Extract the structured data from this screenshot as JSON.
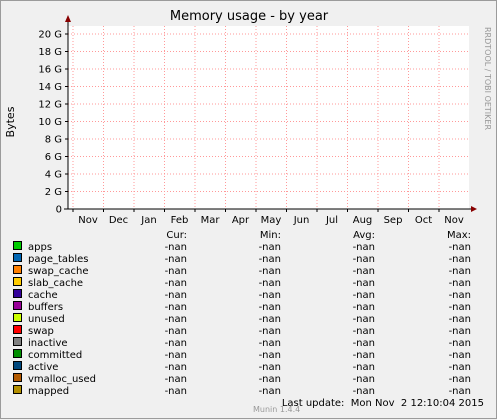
{
  "chart_data": {
    "type": "line",
    "title": "Memory usage - by year",
    "ylabel": "Bytes",
    "xlabel": "",
    "y_ticks": [
      "0",
      "2 G",
      "4 G",
      "6 G",
      "8 G",
      "10 G",
      "12 G",
      "14 G",
      "16 G",
      "18 G",
      "20 G"
    ],
    "ylim": [
      0,
      20
    ],
    "y_unit": "G",
    "x_ticks": [
      "Nov",
      "Dec",
      "Jan",
      "Feb",
      "Mar",
      "Apr",
      "May",
      "Jun",
      "Jul",
      "Aug",
      "Sep",
      "Oct",
      "Nov"
    ],
    "grid": true,
    "side_label": "RRDTOOL / TOBI OETIKER",
    "legend_headers": [
      "Cur:",
      "Min:",
      "Avg:",
      "Max:"
    ],
    "series": [
      {
        "name": "apps",
        "color": "#00cc00",
        "cur": "-nan",
        "min": "-nan",
        "avg": "-nan",
        "max": "-nan"
      },
      {
        "name": "page_tables",
        "color": "#0066b3",
        "cur": "-nan",
        "min": "-nan",
        "avg": "-nan",
        "max": "-nan"
      },
      {
        "name": "swap_cache",
        "color": "#ff8000",
        "cur": "-nan",
        "min": "-nan",
        "avg": "-nan",
        "max": "-nan"
      },
      {
        "name": "slab_cache",
        "color": "#ffcc00",
        "cur": "-nan",
        "min": "-nan",
        "avg": "-nan",
        "max": "-nan"
      },
      {
        "name": "cache",
        "color": "#330099",
        "cur": "-nan",
        "min": "-nan",
        "avg": "-nan",
        "max": "-nan"
      },
      {
        "name": "buffers",
        "color": "#990099",
        "cur": "-nan",
        "min": "-nan",
        "avg": "-nan",
        "max": "-nan"
      },
      {
        "name": "unused",
        "color": "#ccff00",
        "cur": "-nan",
        "min": "-nan",
        "avg": "-nan",
        "max": "-nan"
      },
      {
        "name": "swap",
        "color": "#ff0000",
        "cur": "-nan",
        "min": "-nan",
        "avg": "-nan",
        "max": "-nan"
      },
      {
        "name": "inactive",
        "color": "#808080",
        "cur": "-nan",
        "min": "-nan",
        "avg": "-nan",
        "max": "-nan"
      },
      {
        "name": "committed",
        "color": "#008f00",
        "cur": "-nan",
        "min": "-nan",
        "avg": "-nan",
        "max": "-nan"
      },
      {
        "name": "active",
        "color": "#00487d",
        "cur": "-nan",
        "min": "-nan",
        "avg": "-nan",
        "max": "-nan"
      },
      {
        "name": "vmalloc_used",
        "color": "#b35a00",
        "cur": "-nan",
        "min": "-nan",
        "avg": "-nan",
        "max": "-nan"
      },
      {
        "name": "mapped",
        "color": "#b38f00",
        "cur": "-nan",
        "min": "-nan",
        "avg": "-nan",
        "max": "-nan"
      }
    ],
    "last_update": "Last update:  Mon Nov  2 12:10:04 2015",
    "footer": "Munin 1.4.4"
  }
}
